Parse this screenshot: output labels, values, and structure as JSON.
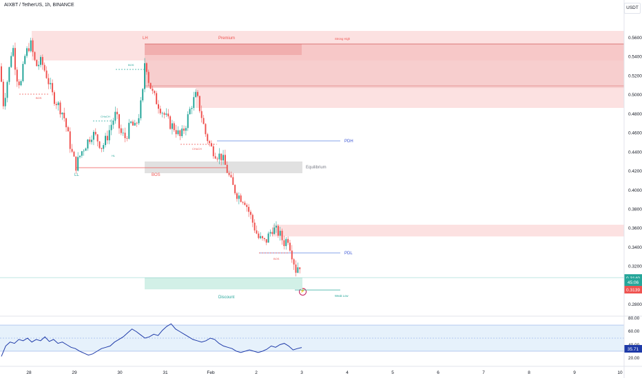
{
  "header": {
    "title": "AIXBT / TetherUS, 1h, BINANCE",
    "currency": "USDT",
    "event_icon": "lightning-icon"
  },
  "colors": {
    "up": "#26a69a",
    "down": "#ef5350",
    "premium_zone": "#f8d0d0",
    "discount_zone": "#cfeee5",
    "equilibrium_zone": "#d9d9d9",
    "level_line": "#5c85e0",
    "bos_line": "#ef5350",
    "choch_line": "#26a69a",
    "rsi": "#1e3aa8",
    "rsi_band": "#e3f0fb"
  },
  "chart_data": [
    {
      "type": "candlestick",
      "y_axis": {
        "ticks": [
          "0.5600",
          "0.5400",
          "0.5200",
          "0.5000",
          "0.4800",
          "0.4600",
          "0.4400",
          "0.4200",
          "0.4000",
          "0.3800",
          "0.3600",
          "0.3400",
          "0.3200",
          "0.3000",
          "0.2800"
        ],
        "range": [
          0.2736,
          0.5672
        ]
      },
      "x_axis": {
        "ticks": [
          "28",
          "29",
          "30",
          "31",
          "Feb",
          "2",
          "3",
          "4",
          "5",
          "6",
          "7",
          "8",
          "9",
          "10"
        ]
      },
      "start_price": 0.53,
      "path": [
        [
          0,
          0.53
        ],
        [
          5,
          0.49
        ],
        [
          14,
          0.53
        ],
        [
          18,
          0.555
        ],
        [
          24,
          0.52
        ],
        [
          30,
          0.51
        ],
        [
          36,
          0.54
        ],
        [
          44,
          0.555
        ],
        [
          52,
          0.53
        ],
        [
          60,
          0.535
        ],
        [
          68,
          0.52
        ],
        [
          76,
          0.5
        ],
        [
          84,
          0.49
        ],
        [
          92,
          0.48
        ],
        [
          98,
          0.46
        ],
        [
          104,
          0.44
        ],
        [
          110,
          0.425
        ],
        [
          118,
          0.44
        ],
        [
          126,
          0.45
        ],
        [
          134,
          0.46
        ],
        [
          140,
          0.455
        ],
        [
          148,
          0.445
        ],
        [
          155,
          0.455
        ],
        [
          162,
          0.47
        ],
        [
          168,
          0.48
        ],
        [
          175,
          0.46
        ],
        [
          182,
          0.455
        ],
        [
          190,
          0.47
        ],
        [
          196,
          0.465
        ],
        [
          202,
          0.48
        ],
        [
          207,
          0.5
        ],
        [
          211,
          0.545
        ],
        [
          214,
          0.52
        ],
        [
          222,
          0.5
        ],
        [
          230,
          0.49
        ],
        [
          238,
          0.48
        ],
        [
          246,
          0.47
        ],
        [
          254,
          0.465
        ],
        [
          262,
          0.455
        ],
        [
          270,
          0.47
        ],
        [
          278,
          0.49
        ],
        [
          285,
          0.5
        ],
        [
          292,
          0.48
        ],
        [
          298,
          0.46
        ],
        [
          306,
          0.445
        ],
        [
          314,
          0.438
        ],
        [
          322,
          0.435
        ],
        [
          330,
          0.42
        ],
        [
          337,
          0.405
        ],
        [
          345,
          0.395
        ],
        [
          355,
          0.39
        ],
        [
          365,
          0.37
        ],
        [
          375,
          0.35
        ],
        [
          385,
          0.345
        ],
        [
          395,
          0.36
        ],
        [
          405,
          0.355
        ],
        [
          412,
          0.345
        ],
        [
          418,
          0.35
        ],
        [
          425,
          0.33
        ],
        [
          430,
          0.315
        ],
        [
          434,
          0.324
        ],
        [
          438,
          0.316
        ]
      ],
      "current_price": "0.3140",
      "countdown": "45:06",
      "prev_price": "0.3139"
    },
    {
      "type": "line",
      "name": "RSI",
      "y_axis": {
        "ticks": [
          "80.00",
          "60.00",
          "40.00",
          "20.00"
        ],
        "range": [
          20,
          80
        ]
      },
      "band": [
        30,
        70
      ],
      "mid": 50,
      "current": "35.71",
      "values": [
        22,
        38,
        44,
        42,
        48,
        46,
        50,
        44,
        48,
        46,
        52,
        45,
        48,
        42,
        44,
        40,
        36,
        34,
        30,
        27,
        24,
        26,
        30,
        34,
        36,
        38,
        44,
        48,
        52,
        58,
        64,
        60,
        55,
        50,
        52,
        56,
        54,
        62,
        68,
        72,
        64,
        60,
        56,
        52,
        48,
        46,
        44,
        46,
        50,
        48,
        42,
        38,
        36,
        34,
        30,
        28,
        30,
        32,
        30,
        28,
        30,
        33,
        38,
        36,
        40,
        42,
        38,
        32,
        34,
        35.7
      ]
    }
  ],
  "annotations": {
    "premium": "Premium",
    "strong_high": "Strong High",
    "hh": "LH",
    "equilibrium": "Equilibrium",
    "discount": "Discount",
    "weak_low": "Weak Low",
    "pdh": "PDH",
    "pdl": "PDL",
    "ll": "LL",
    "bos": "BOS",
    "bos_small": "BOS",
    "choch": "CHoCH",
    "hl": "HL"
  }
}
